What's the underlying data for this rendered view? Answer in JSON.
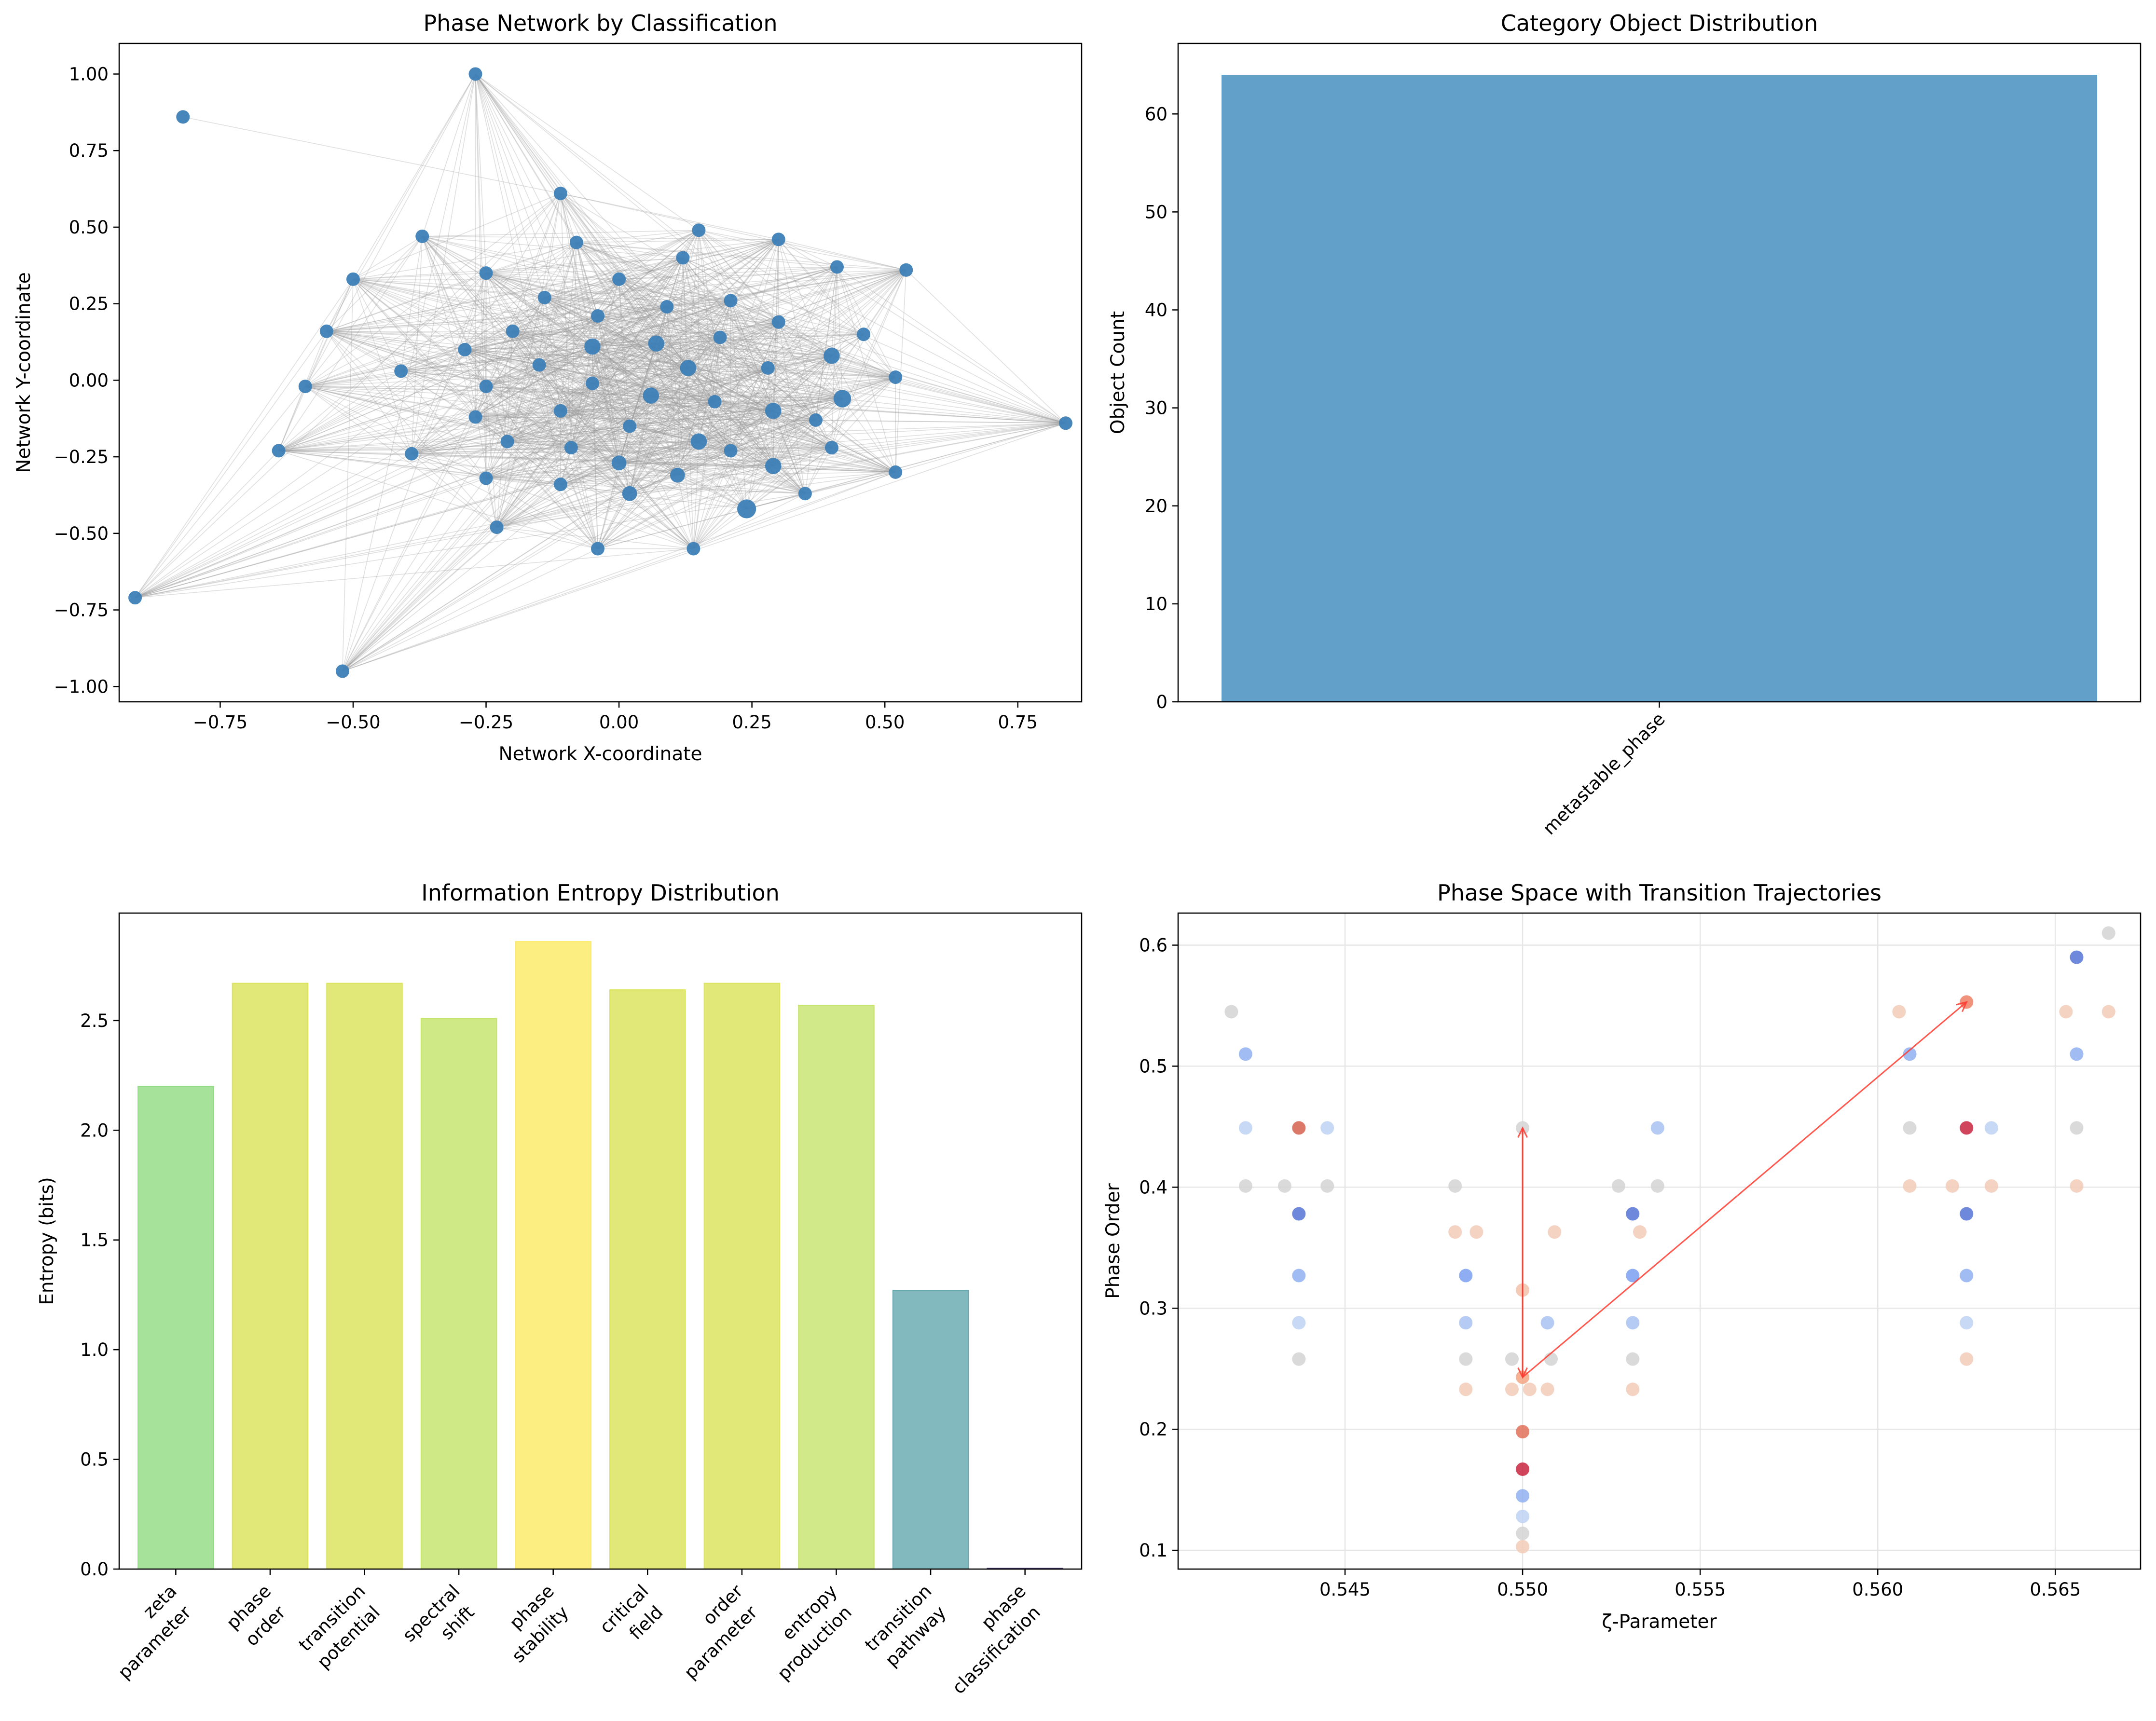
{
  "figure": {
    "colors": {
      "node": "#3d7fb7",
      "edge": "#9a9a9a",
      "bar": "#62a0ca",
      "arrow": "#ff3b30",
      "grid": "#e6e6e6"
    }
  },
  "chart_data": [
    {
      "id": "network",
      "type": "scatter",
      "title": "Phase Network by Classification",
      "xlabel": "Network X-coordinate",
      "ylabel": "Network Y-coordinate",
      "xlim": [
        -0.94,
        0.87
      ],
      "ylim": [
        -1.05,
        1.1
      ],
      "xticks": [
        -0.75,
        -0.5,
        -0.25,
        0.0,
        0.25,
        0.5,
        0.75
      ],
      "xtick_labels": [
        "−0.75",
        "−0.50",
        "−0.25",
        "0.00",
        "0.25",
        "0.50",
        "0.75"
      ],
      "yticks": [
        -1.0,
        -0.75,
        -0.5,
        -0.25,
        0.0,
        0.25,
        0.5,
        0.75,
        1.0
      ],
      "ytick_labels": [
        "−1.00",
        "−0.75",
        "−0.50",
        "−0.25",
        "0.00",
        "0.25",
        "0.50",
        "0.75",
        "1.00"
      ],
      "nodes": [
        {
          "x": -0.82,
          "y": 0.86,
          "s": 1
        },
        {
          "x": -0.27,
          "y": 1.0,
          "s": 1
        },
        {
          "x": -0.11,
          "y": 0.61,
          "s": 1
        },
        {
          "x": -0.37,
          "y": 0.47,
          "s": 1
        },
        {
          "x": 0.15,
          "y": 0.49,
          "s": 1
        },
        {
          "x": 0.3,
          "y": 0.46,
          "s": 1
        },
        {
          "x": -0.5,
          "y": 0.33,
          "s": 1
        },
        {
          "x": -0.08,
          "y": 0.45,
          "s": 1
        },
        {
          "x": 0.41,
          "y": 0.37,
          "s": 1
        },
        {
          "x": 0.54,
          "y": 0.36,
          "s": 1
        },
        {
          "x": -0.25,
          "y": 0.35,
          "s": 1
        },
        {
          "x": 0.12,
          "y": 0.4,
          "s": 1
        },
        {
          "x": 0.0,
          "y": 0.33,
          "s": 1
        },
        {
          "x": -0.14,
          "y": 0.27,
          "s": 1
        },
        {
          "x": 0.09,
          "y": 0.24,
          "s": 1
        },
        {
          "x": 0.21,
          "y": 0.26,
          "s": 1
        },
        {
          "x": -0.55,
          "y": 0.16,
          "s": 1
        },
        {
          "x": -0.2,
          "y": 0.16,
          "s": 1
        },
        {
          "x": -0.04,
          "y": 0.21,
          "s": 1
        },
        {
          "x": 0.3,
          "y": 0.19,
          "s": 1
        },
        {
          "x": 0.46,
          "y": 0.15,
          "s": 1
        },
        {
          "x": -0.29,
          "y": 0.1,
          "s": 1
        },
        {
          "x": -0.05,
          "y": 0.11,
          "s": 1.2
        },
        {
          "x": 0.07,
          "y": 0.12,
          "s": 1.2
        },
        {
          "x": 0.19,
          "y": 0.14,
          "s": 1
        },
        {
          "x": 0.4,
          "y": 0.08,
          "s": 1.2
        },
        {
          "x": -0.59,
          "y": -0.02,
          "s": 1
        },
        {
          "x": -0.41,
          "y": 0.03,
          "s": 1
        },
        {
          "x": -0.15,
          "y": 0.05,
          "s": 1
        },
        {
          "x": 0.13,
          "y": 0.04,
          "s": 1.2
        },
        {
          "x": 0.28,
          "y": 0.04,
          "s": 1
        },
        {
          "x": 0.52,
          "y": 0.01,
          "s": 1
        },
        {
          "x": -0.25,
          "y": -0.02,
          "s": 1
        },
        {
          "x": -0.05,
          "y": -0.01,
          "s": 1
        },
        {
          "x": 0.06,
          "y": -0.05,
          "s": 1.2
        },
        {
          "x": 0.18,
          "y": -0.07,
          "s": 1
        },
        {
          "x": 0.42,
          "y": -0.06,
          "s": 1.3
        },
        {
          "x": 0.84,
          "y": -0.14,
          "s": 1
        },
        {
          "x": -0.27,
          "y": -0.12,
          "s": 1
        },
        {
          "x": -0.11,
          "y": -0.1,
          "s": 1
        },
        {
          "x": 0.02,
          "y": -0.15,
          "s": 1
        },
        {
          "x": 0.29,
          "y": -0.1,
          "s": 1.2
        },
        {
          "x": 0.37,
          "y": -0.13,
          "s": 1
        },
        {
          "x": -0.64,
          "y": -0.23,
          "s": 1
        },
        {
          "x": -0.39,
          "y": -0.24,
          "s": 1
        },
        {
          "x": -0.21,
          "y": -0.2,
          "s": 1
        },
        {
          "x": -0.09,
          "y": -0.22,
          "s": 1
        },
        {
          "x": 0.15,
          "y": -0.2,
          "s": 1.2
        },
        {
          "x": 0.21,
          "y": -0.23,
          "s": 1
        },
        {
          "x": 0.4,
          "y": -0.22,
          "s": 1
        },
        {
          "x": 0.0,
          "y": -0.27,
          "s": 1.1
        },
        {
          "x": -0.25,
          "y": -0.32,
          "s": 1
        },
        {
          "x": -0.11,
          "y": -0.34,
          "s": 1
        },
        {
          "x": 0.11,
          "y": -0.31,
          "s": 1.1
        },
        {
          "x": 0.29,
          "y": -0.28,
          "s": 1.2
        },
        {
          "x": 0.52,
          "y": -0.3,
          "s": 1
        },
        {
          "x": 0.02,
          "y": -0.37,
          "s": 1.1
        },
        {
          "x": 0.35,
          "y": -0.37,
          "s": 1
        },
        {
          "x": -0.23,
          "y": -0.48,
          "s": 1
        },
        {
          "x": 0.24,
          "y": -0.42,
          "s": 1.4
        },
        {
          "x": -0.04,
          "y": -0.55,
          "s": 1
        },
        {
          "x": 0.14,
          "y": -0.55,
          "s": 1
        },
        {
          "x": -0.91,
          "y": -0.71,
          "s": 1
        },
        {
          "x": -0.52,
          "y": -0.95,
          "s": 1
        }
      ]
    },
    {
      "id": "category",
      "type": "bar",
      "title": "Category Object Distribution",
      "xlabel": "",
      "ylabel": "Object Count",
      "categories": [
        "metastable_phase"
      ],
      "values": [
        64
      ],
      "ylim": [
        0,
        67.2
      ],
      "yticks": [
        0,
        10,
        20,
        30,
        40,
        50,
        60
      ],
      "ytick_labels": [
        "0",
        "10",
        "20",
        "30",
        "40",
        "50",
        "60"
      ]
    },
    {
      "id": "entropy",
      "type": "bar",
      "title": "Information Entropy Distribution",
      "xlabel": "",
      "ylabel": "Entropy (bits)",
      "categories": [
        [
          "zeta",
          "parameter"
        ],
        [
          "phase",
          "order"
        ],
        [
          "transition",
          "potential"
        ],
        [
          "spectral",
          "shift"
        ],
        [
          "phase",
          "stability"
        ],
        [
          "critical",
          "field"
        ],
        [
          "order",
          "parameter"
        ],
        [
          "entropy",
          "production"
        ],
        [
          "transition",
          "pathway"
        ],
        [
          "phase",
          "classification"
        ]
      ],
      "values": [
        2.2,
        2.67,
        2.67,
        2.51,
        2.86,
        2.64,
        2.67,
        2.57,
        1.27,
        0.0
      ],
      "colors": [
        "#94dc85",
        "#dbe35a",
        "#dbe35a",
        "#c5e46c",
        "#fdea66",
        "#dbe35a",
        "#dbe35a",
        "#c7e46e",
        "#67a9b0",
        "#4b3a7b"
      ],
      "ylim": [
        0,
        2.99
      ],
      "yticks": [
        0.0,
        0.5,
        1.0,
        1.5,
        2.0,
        2.5
      ],
      "ytick_labels": [
        "0.0",
        "0.5",
        "1.0",
        "1.5",
        "2.0",
        "2.5"
      ]
    },
    {
      "id": "phase_space",
      "type": "scatter",
      "title": "Phase Space with Transition Trajectories",
      "xlabel": "ζ-Parameter",
      "ylabel": "Phase Order",
      "xlim": [
        0.5403,
        0.5674
      ],
      "ylim": [
        0.0845,
        0.6265
      ],
      "grid": true,
      "xticks": [
        0.545,
        0.55,
        0.555,
        0.56,
        0.565
      ],
      "xtick_labels": [
        "0.545",
        "0.550",
        "0.555",
        "0.560",
        "0.565"
      ],
      "yticks": [
        0.1,
        0.2,
        0.3,
        0.4,
        0.5,
        0.6
      ],
      "ytick_labels": [
        "0.1",
        "0.2",
        "0.3",
        "0.4",
        "0.5",
        "0.6"
      ],
      "points": [
        {
          "x": 0.5418,
          "y": 0.545,
          "c": "#d4d4d4"
        },
        {
          "x": 0.5422,
          "y": 0.51,
          "c": "#8fb0f0"
        },
        {
          "x": 0.5422,
          "y": 0.449,
          "c": "#bdd2f2"
        },
        {
          "x": 0.5422,
          "y": 0.401,
          "c": "#d4d4d4"
        },
        {
          "x": 0.5437,
          "y": 0.449,
          "c": "#d6604d"
        },
        {
          "x": 0.5445,
          "y": 0.449,
          "c": "#bdd2f2"
        },
        {
          "x": 0.5433,
          "y": 0.401,
          "c": "#d4d4d4"
        },
        {
          "x": 0.5445,
          "y": 0.401,
          "c": "#d4d4d4"
        },
        {
          "x": 0.5437,
          "y": 0.378,
          "c": "#5573d6"
        },
        {
          "x": 0.5437,
          "y": 0.327,
          "c": "#8fb0f0"
        },
        {
          "x": 0.5437,
          "y": 0.288,
          "c": "#bdd2f2"
        },
        {
          "x": 0.5437,
          "y": 0.258,
          "c": "#d4d4d4"
        },
        {
          "x": 0.5481,
          "y": 0.401,
          "c": "#d4d4d4"
        },
        {
          "x": 0.5481,
          "y": 0.363,
          "c": "#f2cbb7"
        },
        {
          "x": 0.5487,
          "y": 0.363,
          "c": "#f2cbb7"
        },
        {
          "x": 0.5484,
          "y": 0.327,
          "c": "#7b9ff0"
        },
        {
          "x": 0.5484,
          "y": 0.288,
          "c": "#a8c2f2"
        },
        {
          "x": 0.5484,
          "y": 0.258,
          "c": "#d4d4d4"
        },
        {
          "x": 0.5484,
          "y": 0.233,
          "c": "#f2cbb7"
        },
        {
          "x": 0.5497,
          "y": 0.258,
          "c": "#d4d4d4"
        },
        {
          "x": 0.5497,
          "y": 0.233,
          "c": "#f2cbb7"
        },
        {
          "x": 0.5502,
          "y": 0.233,
          "c": "#f2cbb7"
        },
        {
          "x": 0.5507,
          "y": 0.233,
          "c": "#f2cbb7"
        },
        {
          "x": 0.5507,
          "y": 0.288,
          "c": "#a8c2f2"
        },
        {
          "x": 0.5508,
          "y": 0.258,
          "c": "#d4d4d4"
        },
        {
          "x": 0.5509,
          "y": 0.363,
          "c": "#f2cbb7"
        },
        {
          "x": 0.55,
          "y": 0.449,
          "c": "#d4d4d4"
        },
        {
          "x": 0.55,
          "y": 0.315,
          "c": "#f2c2aa"
        },
        {
          "x": 0.55,
          "y": 0.243,
          "c": "#f4a582"
        },
        {
          "x": 0.55,
          "y": 0.198,
          "c": "#e0715a"
        },
        {
          "x": 0.55,
          "y": 0.167,
          "c": "#c8253e"
        },
        {
          "x": 0.55,
          "y": 0.145,
          "c": "#8fb0f0"
        },
        {
          "x": 0.55,
          "y": 0.128,
          "c": "#bdd2f2"
        },
        {
          "x": 0.55,
          "y": 0.114,
          "c": "#d4d4d4"
        },
        {
          "x": 0.55,
          "y": 0.103,
          "c": "#f2cbb7"
        },
        {
          "x": 0.5527,
          "y": 0.401,
          "c": "#d4d4d4"
        },
        {
          "x": 0.5531,
          "y": 0.378,
          "c": "#5573d6"
        },
        {
          "x": 0.5533,
          "y": 0.363,
          "c": "#f2cbb7"
        },
        {
          "x": 0.5531,
          "y": 0.327,
          "c": "#7b9ff0"
        },
        {
          "x": 0.5531,
          "y": 0.288,
          "c": "#a8c2f2"
        },
        {
          "x": 0.5531,
          "y": 0.258,
          "c": "#d4d4d4"
        },
        {
          "x": 0.5531,
          "y": 0.233,
          "c": "#f2cbb7"
        },
        {
          "x": 0.5538,
          "y": 0.449,
          "c": "#a8c2f2"
        },
        {
          "x": 0.5538,
          "y": 0.401,
          "c": "#d4d4d4"
        },
        {
          "x": 0.5606,
          "y": 0.545,
          "c": "#f2cbb7"
        },
        {
          "x": 0.5609,
          "y": 0.51,
          "c": "#8fb0f0"
        },
        {
          "x": 0.5609,
          "y": 0.449,
          "c": "#d4d4d4"
        },
        {
          "x": 0.5609,
          "y": 0.401,
          "c": "#f2cbb7"
        },
        {
          "x": 0.5621,
          "y": 0.401,
          "c": "#f2cbb7"
        },
        {
          "x": 0.5625,
          "y": 0.553,
          "c": "#ef7f66"
        },
        {
          "x": 0.5625,
          "y": 0.449,
          "c": "#c8253e"
        },
        {
          "x": 0.5632,
          "y": 0.449,
          "c": "#bdd2f2"
        },
        {
          "x": 0.5632,
          "y": 0.401,
          "c": "#f2cbb7"
        },
        {
          "x": 0.5625,
          "y": 0.378,
          "c": "#5573d6"
        },
        {
          "x": 0.5625,
          "y": 0.327,
          "c": "#8fb0f0"
        },
        {
          "x": 0.5625,
          "y": 0.288,
          "c": "#bdd2f2"
        },
        {
          "x": 0.5625,
          "y": 0.258,
          "c": "#f2cbb7"
        },
        {
          "x": 0.5653,
          "y": 0.545,
          "c": "#f2cbb7"
        },
        {
          "x": 0.5656,
          "y": 0.59,
          "c": "#5573d6"
        },
        {
          "x": 0.5656,
          "y": 0.51,
          "c": "#8fb0f0"
        },
        {
          "x": 0.5656,
          "y": 0.449,
          "c": "#d4d4d4"
        },
        {
          "x": 0.5656,
          "y": 0.401,
          "c": "#f2cbb7"
        },
        {
          "x": 0.5665,
          "y": 0.61,
          "c": "#d4d4d4"
        },
        {
          "x": 0.5665,
          "y": 0.545,
          "c": "#f2cbb7"
        }
      ],
      "trajectories": [
        {
          "from": [
            0.55,
            0.243
          ],
          "to": [
            0.55,
            0.449
          ]
        },
        {
          "from": [
            0.55,
            0.449
          ],
          "to": [
            0.55,
            0.243
          ]
        },
        {
          "from": [
            0.55,
            0.243
          ],
          "to": [
            0.5625,
            0.553
          ]
        }
      ]
    }
  ]
}
